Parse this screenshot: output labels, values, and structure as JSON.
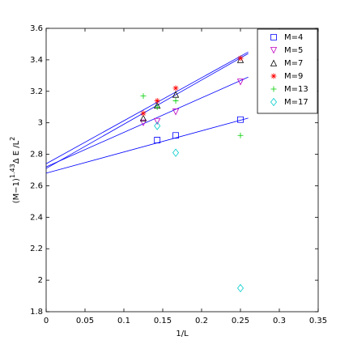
{
  "chart_data": {
    "type": "scatter",
    "xlabel": "1/L",
    "ylabel": [
      "(M−1)",
      "1.43",
      "Δ E /L",
      "2"
    ],
    "xlim": [
      0,
      0.35
    ],
    "xticks": [
      0,
      0.05,
      0.1,
      0.15,
      0.2,
      0.25,
      0.3,
      0.35
    ],
    "ylim": [
      1.8,
      3.6
    ],
    "yticks": [
      1.8,
      2,
      2.2,
      2.4,
      2.6,
      2.8,
      3,
      3.2,
      3.4,
      3.6
    ],
    "legend": "upper right",
    "x": [
      0.125,
      0.1429,
      0.1667,
      0.25
    ],
    "series": [
      {
        "name": "M=4",
        "color": "#0000ff",
        "marker": "square",
        "values": [
          null,
          2.89,
          2.92,
          3.02
        ]
      },
      {
        "name": "M=5",
        "color": "#bf00bf",
        "marker": "triangle-down",
        "values": [
          3.0,
          3.01,
          3.07,
          3.26
        ]
      },
      {
        "name": "M=7",
        "color": "#000000",
        "marker": "triangle-up",
        "values": [
          3.03,
          3.11,
          3.18,
          3.4
        ]
      },
      {
        "name": "M=9",
        "color": "#ff0000",
        "marker": "star",
        "values": [
          3.06,
          3.14,
          3.22,
          3.41
        ]
      },
      {
        "name": "M=13",
        "color": "#00cc00",
        "marker": "plus",
        "values": [
          3.17,
          3.1,
          3.14,
          2.92
        ]
      },
      {
        "name": "M=17",
        "color": "#00cccc",
        "marker": "diamond",
        "values": [
          null,
          2.98,
          2.81,
          1.95
        ]
      }
    ],
    "lines_color": "#0000ff",
    "lines": [
      {
        "x": [
          0,
          0.26
        ],
        "y": [
          2.68,
          3.03
        ]
      },
      {
        "x": [
          0,
          0.26
        ],
        "y": [
          2.72,
          3.29
        ]
      },
      {
        "x": [
          0,
          0.26
        ],
        "y": [
          2.71,
          3.44
        ]
      },
      {
        "x": [
          0,
          0.26
        ],
        "y": [
          2.74,
          3.45
        ]
      }
    ]
  }
}
